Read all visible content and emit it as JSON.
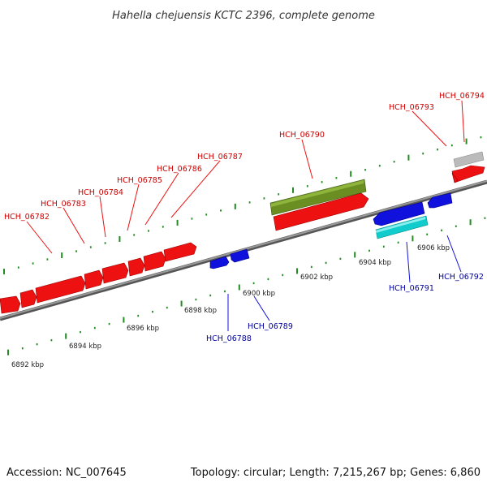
{
  "title": "Hahella chejuensis KCTC 2396, complete genome",
  "footer": {
    "accession": "Accession: NC_007645",
    "info": "Topology: circular; Length: 7,215,267 bp; Genes: 6,860"
  },
  "colors": {
    "forward": "#ee1111",
    "reverse": "#1111dd",
    "olive": "#6b8e23",
    "cyan": "#11cccc",
    "gray": "#bbbbbb",
    "backbone": "#888888",
    "tick": "#228b22",
    "forward_label": "#cc0000",
    "reverse_label": "#000099"
  },
  "scale_labels": [
    "6892 kbp",
    "6894 kbp",
    "6896 kbp",
    "6898 kbp",
    "6900 kbp",
    "6902 kbp",
    "6904 kbp",
    "6906 kbp"
  ],
  "forward_labels": [
    "HCH_06782",
    "HCH_06783",
    "HCH_06784",
    "HCH_06785",
    "HCH_06786",
    "HCH_06787",
    "HCH_06790",
    "HCH_06793",
    "HCH_06794"
  ],
  "reverse_labels": [
    "HCH_06788",
    "HCH_06789",
    "HCH_06791",
    "HCH_06792"
  ]
}
